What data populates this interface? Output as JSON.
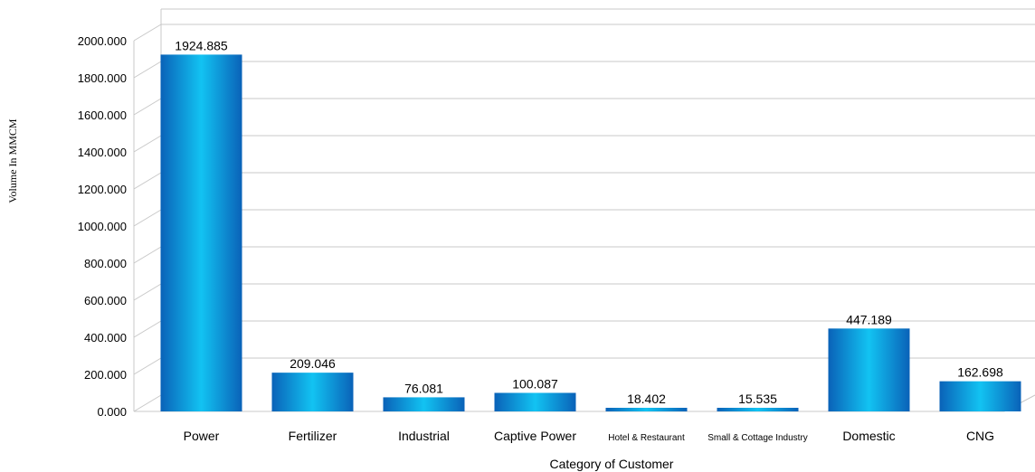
{
  "chart_data": {
    "type": "bar",
    "categories": [
      "Power",
      "Fertilizer",
      "Industrial",
      "Captive Power",
      "Hotel & Restaurant",
      "Small & Cottage Industry",
      "Domestic",
      "CNG"
    ],
    "values": [
      1924.885,
      209.046,
      76.081,
      100.087,
      18.402,
      15.535,
      447.189,
      162.698
    ],
    "value_labels": [
      "1924.885",
      "209.046",
      "76.081",
      "100.087",
      "18.402",
      "15.535",
      "447.189",
      "162.698"
    ],
    "title": "",
    "xlabel": "Category of Customer",
    "ylabel": "Volume In MMCM",
    "ylim": [
      0,
      2000
    ],
    "yticks": [
      "0.000",
      "200.000",
      "400.000",
      "600.000",
      "800.000",
      "1000.000",
      "1200.000",
      "1400.000",
      "1600.000",
      "1800.000",
      "2000.000"
    ],
    "grid": true,
    "legend": "none",
    "style": "3d-perspective",
    "colors": {
      "bar_edge": "#0a62b8",
      "bar_center": "#12c3f2",
      "grid": "#c8c8c8"
    }
  }
}
